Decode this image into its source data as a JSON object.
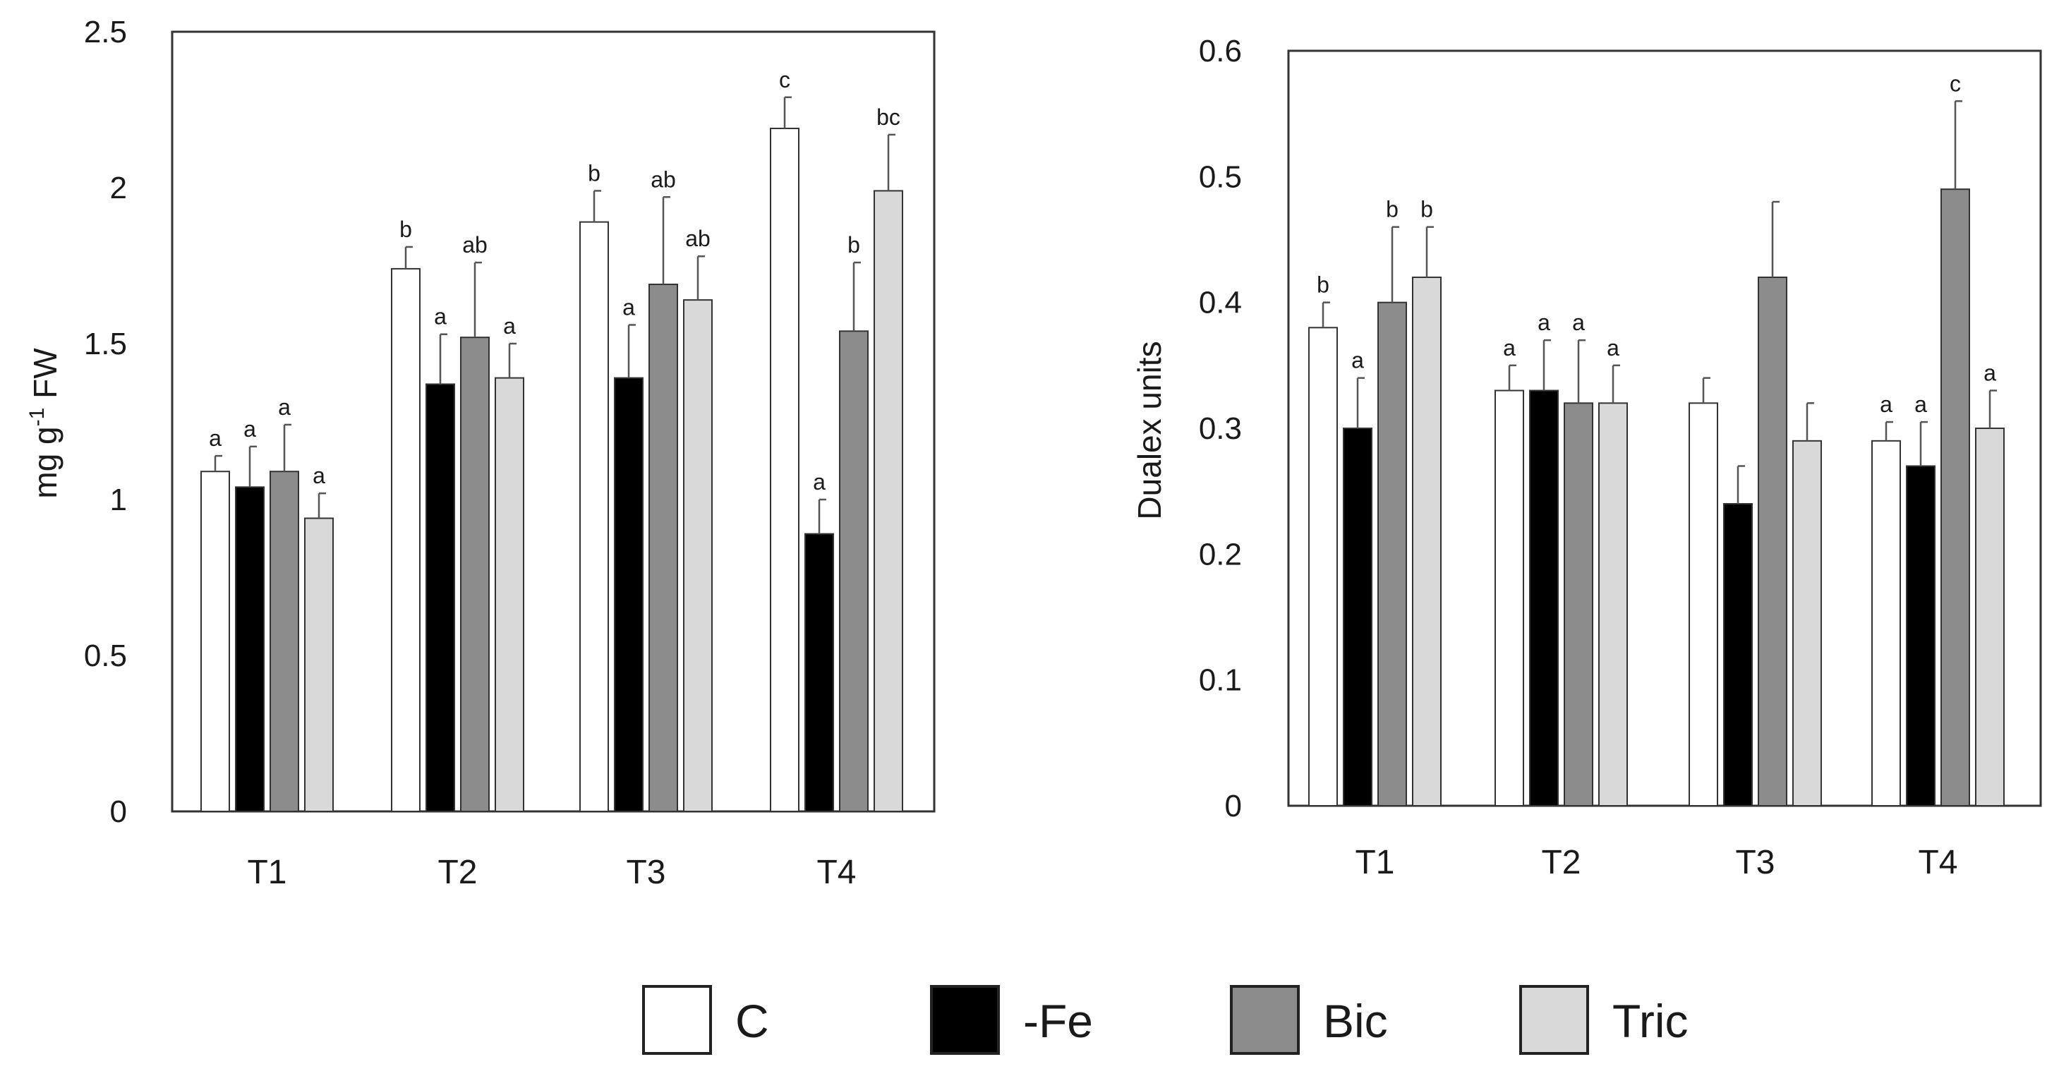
{
  "legend": [
    {
      "name": "C",
      "color": "#ffffff"
    },
    {
      "name": "-Fe",
      "color": "#000000"
    },
    {
      "name": "Bic",
      "color": "#8c8c8c"
    },
    {
      "name": "Tric",
      "color": "#d9d9d9"
    }
  ],
  "chart_data": [
    {
      "type": "bar",
      "title": "",
      "xlabel": "",
      "ylabel_main": "mg g",
      "ylabel_sup": "-1",
      "ylabel_tail": " FW",
      "ylim": [
        0,
        2.5
      ],
      "yticks": [
        "0",
        "0.5",
        "1",
        "1.5",
        "2",
        "2.5"
      ],
      "ytick_values": [
        0,
        0.5,
        1,
        1.5,
        2,
        2.5
      ],
      "categories": [
        "T1",
        "T2",
        "T3",
        "T4"
      ],
      "series": [
        {
          "name": "C",
          "values": [
            1.09,
            1.74,
            1.89,
            2.19
          ],
          "errors": [
            0.05,
            0.07,
            0.1,
            0.1
          ],
          "letters": [
            "a",
            "b",
            "b",
            "c"
          ]
        },
        {
          "name": "-Fe",
          "values": [
            1.04,
            1.37,
            1.39,
            0.89
          ],
          "errors": [
            0.13,
            0.16,
            0.17,
            0.11
          ],
          "letters": [
            "a",
            "a",
            "a",
            "a"
          ]
        },
        {
          "name": "Bic",
          "values": [
            1.09,
            1.52,
            1.69,
            1.54
          ],
          "errors": [
            0.15,
            0.24,
            0.28,
            0.22
          ],
          "letters": [
            "a",
            "ab",
            "ab",
            "b"
          ]
        },
        {
          "name": "Tric",
          "values": [
            0.94,
            1.39,
            1.64,
            1.99
          ],
          "errors": [
            0.08,
            0.11,
            0.14,
            0.18
          ],
          "letters": [
            "a",
            "a",
            "ab",
            "bc"
          ]
        }
      ]
    },
    {
      "type": "bar",
      "title": "",
      "xlabel": "",
      "ylabel": "Dualex units",
      "ylim": [
        0,
        0.6
      ],
      "yticks": [
        "0",
        "0.1",
        "0.2",
        "0.3",
        "0.4",
        "0.5",
        "0.6"
      ],
      "ytick_values": [
        0,
        0.1,
        0.2,
        0.3,
        0.4,
        0.5,
        0.6
      ],
      "categories": [
        "T1",
        "T2",
        "T3",
        "T4"
      ],
      "series": [
        {
          "name": "C",
          "values": [
            0.38,
            0.33,
            0.32,
            0.29
          ],
          "errors": [
            0.02,
            0.02,
            0.02,
            0.015
          ],
          "letters": [
            "b",
            "a",
            "",
            "a"
          ]
        },
        {
          "name": "-Fe",
          "values": [
            0.3,
            0.33,
            0.24,
            0.27
          ],
          "errors": [
            0.04,
            0.04,
            0.03,
            0.035
          ],
          "letters": [
            "a",
            "a",
            "",
            "a"
          ]
        },
        {
          "name": "Bic",
          "values": [
            0.4,
            0.32,
            0.42,
            0.49
          ],
          "errors": [
            0.06,
            0.05,
            0.06,
            0.07
          ],
          "letters": [
            "b",
            "a",
            "",
            "c"
          ]
        },
        {
          "name": "Tric",
          "values": [
            0.42,
            0.32,
            0.29,
            0.3
          ],
          "errors": [
            0.04,
            0.03,
            0.03,
            0.03
          ],
          "letters": [
            "b",
            "a",
            "",
            "a"
          ]
        }
      ]
    }
  ]
}
